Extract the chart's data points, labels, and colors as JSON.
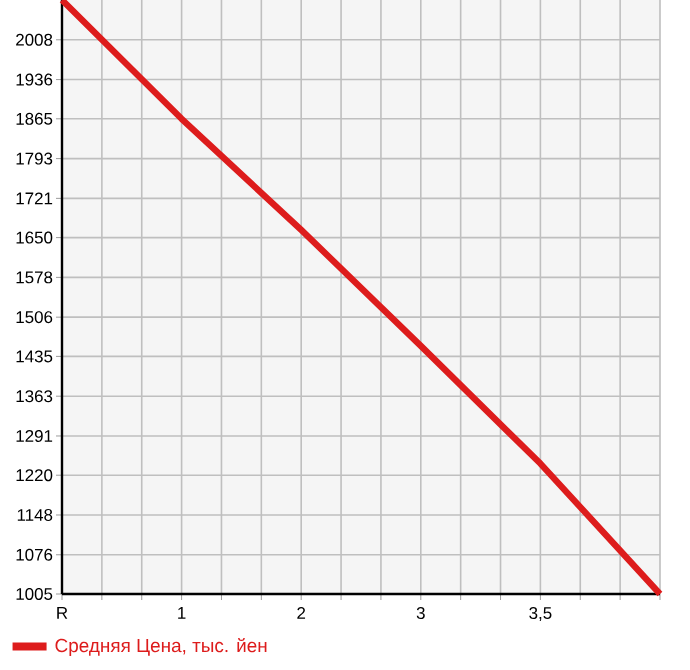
{
  "chart_data": {
    "type": "line",
    "categories": [
      "R",
      "1",
      "2",
      "3",
      "3,5",
      null
    ],
    "series": [
      {
        "name": "Средняя Цена, тыс. йен",
        "color": "#dd1c1c",
        "values": [
          2080,
          1865,
          1664,
          1454,
          1241,
          1005
        ]
      }
    ],
    "ylim": [
      1005,
      2080
    ],
    "yticks": [
      1005,
      1076,
      1148,
      1220,
      1291,
      1363,
      1435,
      1506,
      1578,
      1650,
      1721,
      1793,
      1865,
      1936,
      2008
    ],
    "grid": true,
    "legend": "bottom left",
    "line_style": "solid"
  }
}
